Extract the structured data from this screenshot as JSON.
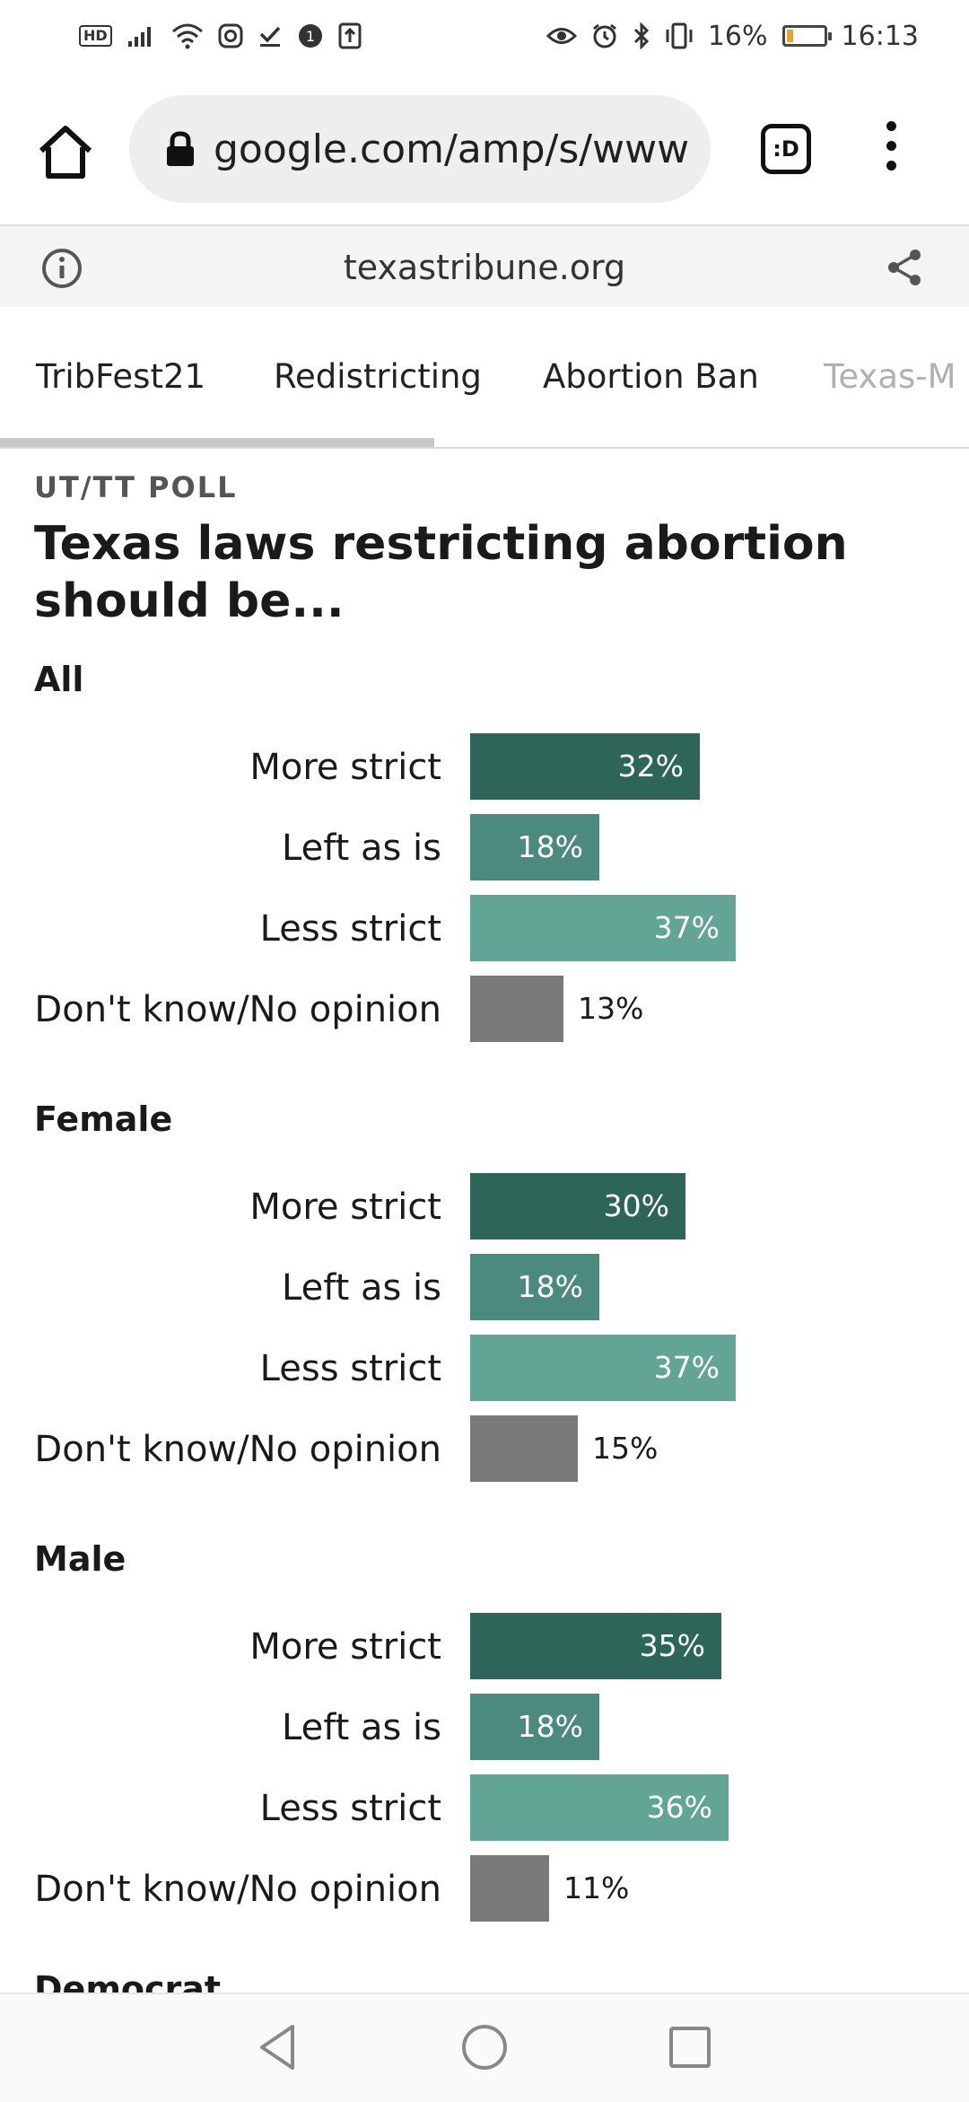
{
  "status_bar": {
    "hd": "HD",
    "battery_percent": "16%",
    "battery_level": 0.16,
    "time": "16:13",
    "icons_left": [
      "signal-icon",
      "wifi-icon",
      "instagram-icon",
      "download-done-icon",
      "notification-icon",
      "upload-icon"
    ],
    "icons_right": [
      "eye-icon",
      "alarm-icon",
      "bluetooth-icon",
      "vibrate-icon"
    ]
  },
  "browser": {
    "url": "google.com/amp/s/www",
    "tabs_label": ":D"
  },
  "amp_header": {
    "domain": "texastribune.org"
  },
  "site_nav": {
    "items": [
      {
        "label": "TribFest21"
      },
      {
        "label": "Redistricting"
      },
      {
        "label": "Abortion Ban"
      },
      {
        "label": "Texas-M"
      }
    ]
  },
  "chart_data": {
    "type": "bar",
    "kicker": "UT/TT POLL",
    "title": "Texas laws restricting abortion should be...",
    "categories": [
      "More strict",
      "Left as is",
      "Less strict",
      "Don't know/No opinion"
    ],
    "unit": "%",
    "xlim": [
      0,
      100
    ],
    "colors": [
      "#2d6558",
      "#4b8a7c",
      "#62a595",
      "#7a7a7a"
    ],
    "groups": [
      {
        "name": "All",
        "values": [
          32,
          18,
          37,
          13
        ]
      },
      {
        "name": "Female",
        "values": [
          30,
          18,
          37,
          15
        ]
      },
      {
        "name": "Male",
        "values": [
          35,
          18,
          36,
          11
        ]
      }
    ],
    "next_group_partial": "Democrat"
  }
}
